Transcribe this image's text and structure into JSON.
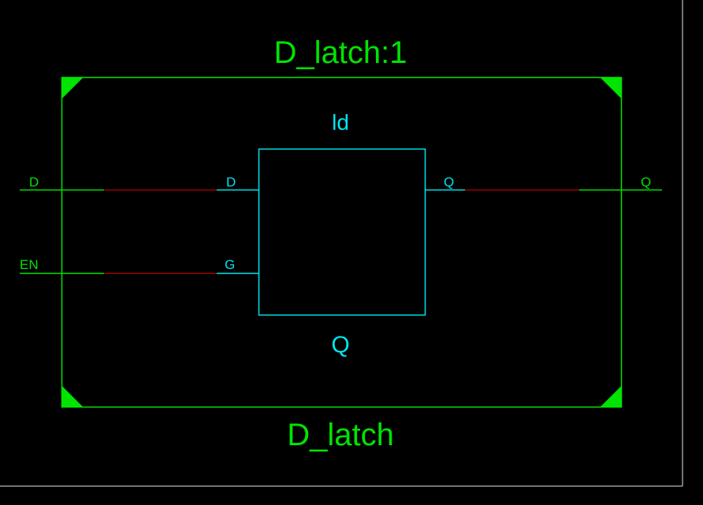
{
  "diagram": {
    "module_instance": "D_latch:1",
    "module_name": "D_latch",
    "cell": {
      "name": "ld",
      "type": "Q",
      "pins": {
        "input_d": "D",
        "input_g": "G",
        "output_q": "Q"
      }
    },
    "ports": {
      "input_d": "D",
      "input_en": "EN",
      "output_q": "Q"
    }
  },
  "colors": {
    "background": "#000000",
    "frame": "#9a9a9a",
    "module_border": "#00e400",
    "cell_border": "#00e5ee",
    "wire_port": "#00e400",
    "wire_pin": "#00e5ee",
    "wire_net": "#a00000"
  }
}
